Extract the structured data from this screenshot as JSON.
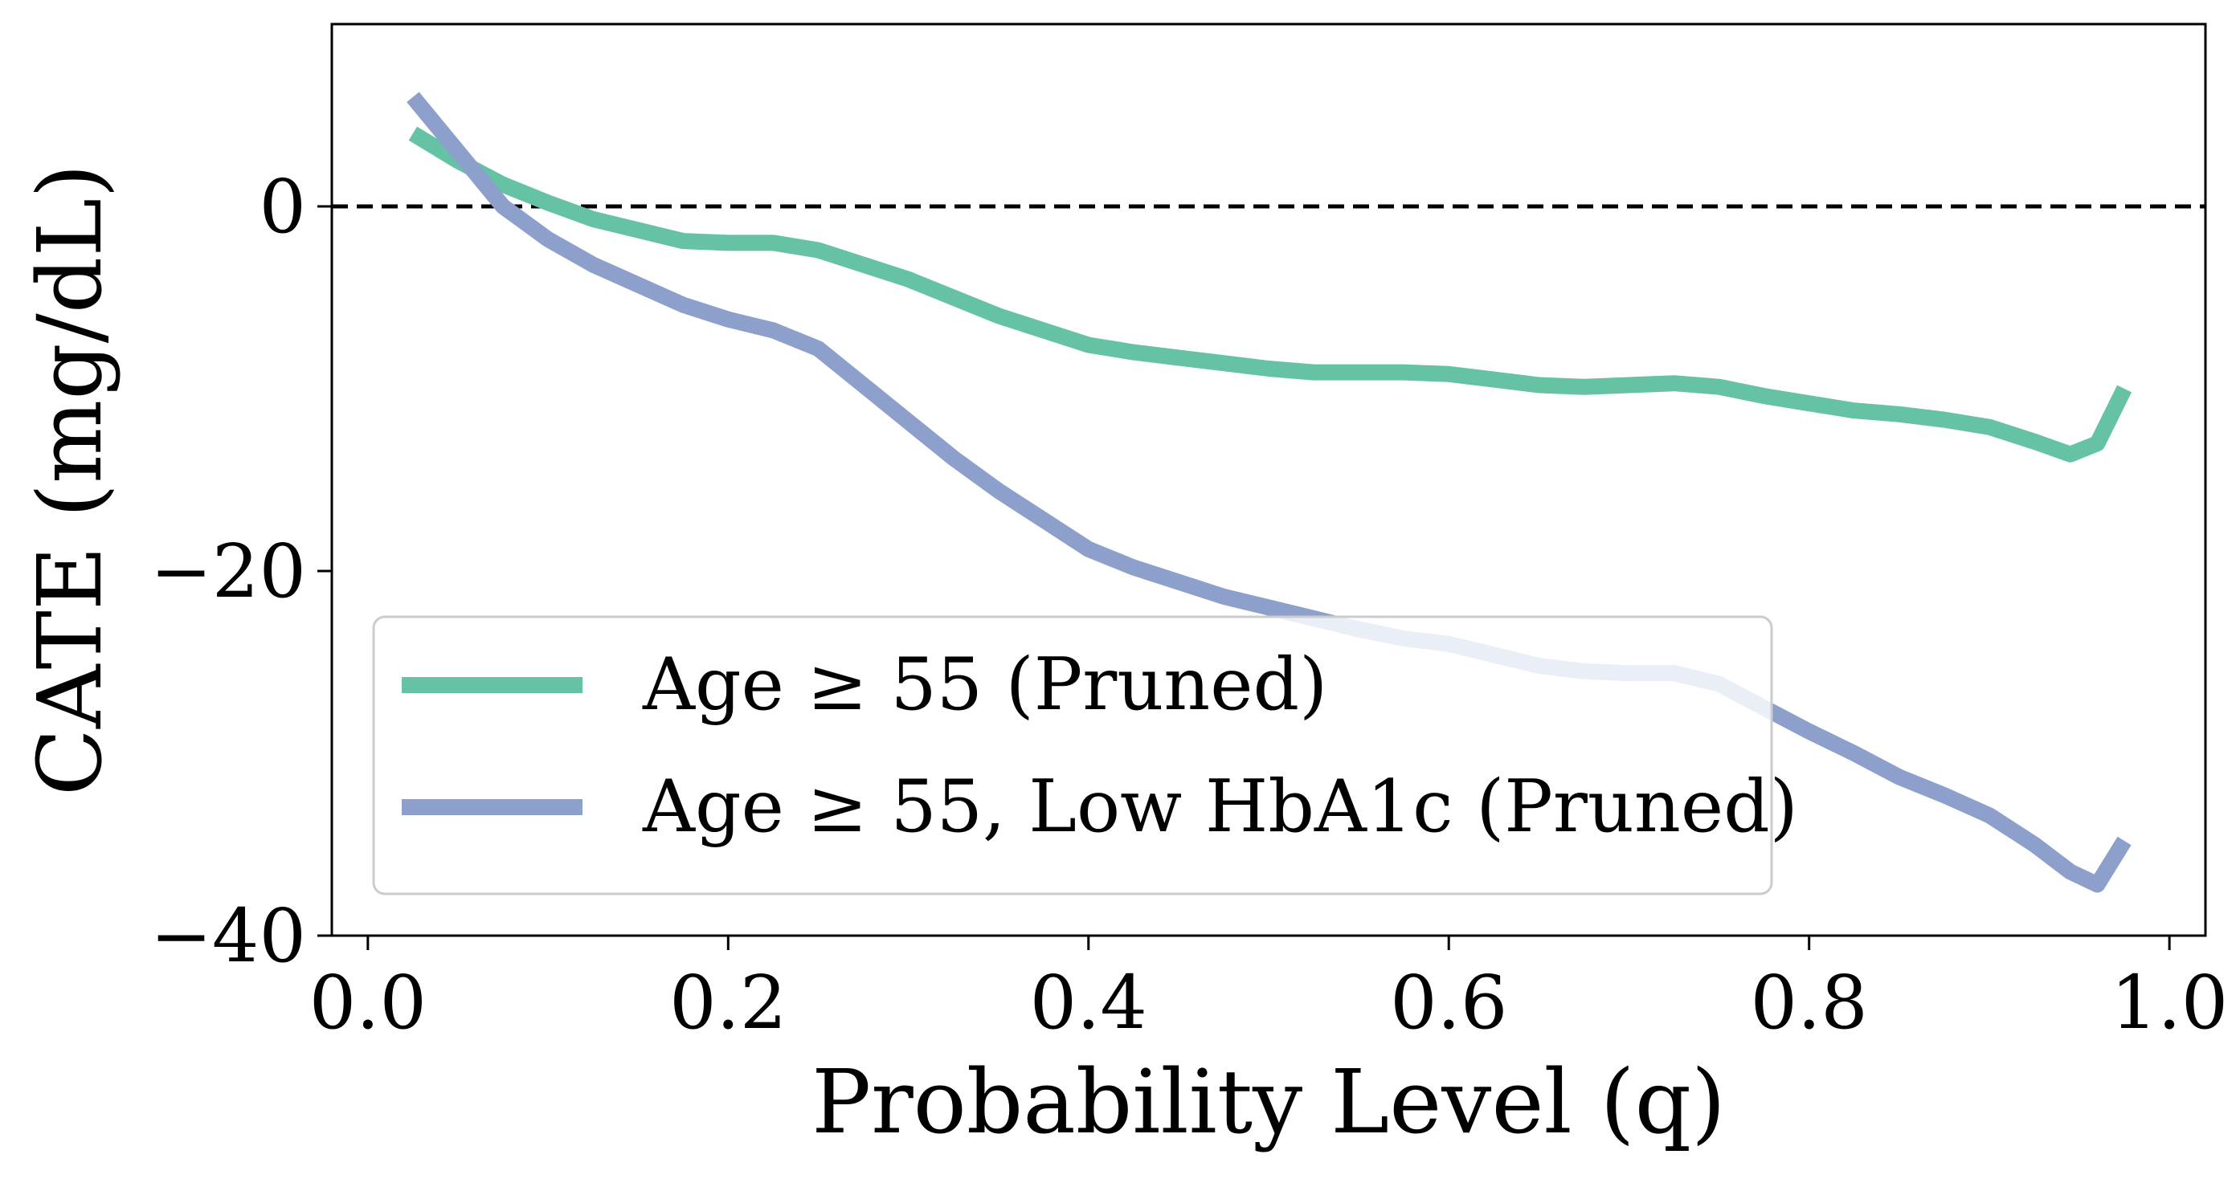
{
  "chart_data": {
    "type": "line",
    "xlabel": "Probability Level (q)",
    "ylabel": "CATE (mg/dL)",
    "xlim": [
      -0.02,
      1.02
    ],
    "ylim": [
      -40,
      10
    ],
    "x_ticks": [
      0.0,
      0.2,
      0.4,
      0.6,
      0.8,
      1.0
    ],
    "x_tick_labels": [
      "0.0",
      "0.2",
      "0.4",
      "0.6",
      "0.8",
      "1.0"
    ],
    "y_ticks": [
      -40,
      -20,
      0
    ],
    "y_tick_labels": [
      "−40",
      "−20",
      "0"
    ],
    "reference_line": {
      "y": 0,
      "style": "dashed",
      "color": "#000000"
    },
    "grid": false,
    "legend": {
      "placement": "lower-left"
    },
    "series": [
      {
        "name": "Age ≥ 55 (Pruned)",
        "color": "#66c2a5",
        "x": [
          0.025,
          0.05,
          0.075,
          0.1,
          0.125,
          0.15,
          0.175,
          0.2,
          0.225,
          0.25,
          0.275,
          0.3,
          0.325,
          0.35,
          0.375,
          0.4,
          0.425,
          0.45,
          0.475,
          0.5,
          0.525,
          0.55,
          0.575,
          0.6,
          0.625,
          0.65,
          0.675,
          0.7,
          0.725,
          0.75,
          0.775,
          0.8,
          0.825,
          0.85,
          0.875,
          0.9,
          0.925,
          0.945,
          0.96,
          0.975
        ],
        "y": [
          4.0,
          2.5,
          1.2,
          0.2,
          -0.7,
          -1.3,
          -1.9,
          -2.0,
          -2.0,
          -2.4,
          -3.2,
          -4.0,
          -5.0,
          -6.0,
          -6.8,
          -7.6,
          -8.0,
          -8.3,
          -8.6,
          -8.9,
          -9.1,
          -9.1,
          -9.1,
          -9.2,
          -9.5,
          -9.8,
          -9.9,
          -9.8,
          -9.7,
          -9.9,
          -10.4,
          -10.8,
          -11.2,
          -11.4,
          -11.7,
          -12.1,
          -12.9,
          -13.6,
          -13.0,
          -10.0
        ]
      },
      {
        "name": "Age ≥ 55, Low HbA1c (Pruned)",
        "color": "#8da0cb",
        "x": [
          0.025,
          0.05,
          0.075,
          0.1,
          0.125,
          0.15,
          0.175,
          0.2,
          0.225,
          0.25,
          0.275,
          0.3,
          0.325,
          0.35,
          0.375,
          0.4,
          0.425,
          0.45,
          0.475,
          0.5,
          0.525,
          0.55,
          0.575,
          0.6,
          0.625,
          0.65,
          0.675,
          0.7,
          0.725,
          0.75,
          0.775,
          0.8,
          0.825,
          0.85,
          0.875,
          0.9,
          0.925,
          0.945,
          0.96,
          0.975
        ],
        "y": [
          6.0,
          3.0,
          0.0,
          -1.8,
          -3.2,
          -4.3,
          -5.4,
          -6.2,
          -6.8,
          -7.8,
          -9.8,
          -11.8,
          -13.8,
          -15.6,
          -17.2,
          -18.8,
          -19.8,
          -20.6,
          -21.4,
          -22.0,
          -22.6,
          -23.2,
          -23.7,
          -24.0,
          -24.6,
          -25.2,
          -25.5,
          -25.6,
          -25.6,
          -26.2,
          -27.5,
          -28.8,
          -30.0,
          -31.3,
          -32.3,
          -33.4,
          -35.0,
          -36.5,
          -37.2,
          -34.8
        ]
      }
    ]
  }
}
